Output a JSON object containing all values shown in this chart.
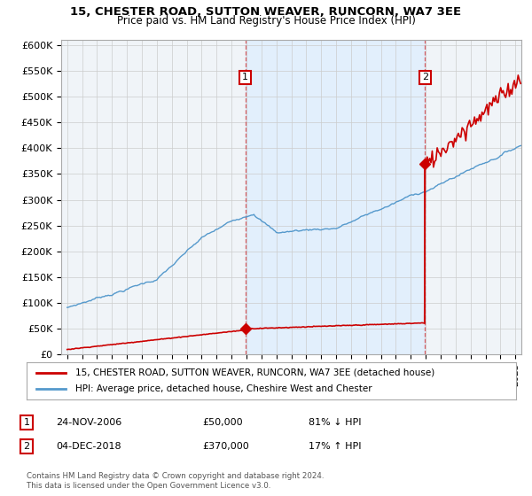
{
  "title": "15, CHESTER ROAD, SUTTON WEAVER, RUNCORN, WA7 3EE",
  "subtitle": "Price paid vs. HM Land Registry's House Price Index (HPI)",
  "ylabel_ticks": [
    "£0",
    "£50K",
    "£100K",
    "£150K",
    "£200K",
    "£250K",
    "£300K",
    "£350K",
    "£400K",
    "£450K",
    "£500K",
    "£550K",
    "£600K"
  ],
  "ytick_values": [
    0,
    50000,
    100000,
    150000,
    200000,
    250000,
    300000,
    350000,
    400000,
    450000,
    500000,
    550000,
    600000
  ],
  "ylim": [
    0,
    610000
  ],
  "xlim_start": 1994.6,
  "xlim_end": 2025.4,
  "sale1_x": 2006.92,
  "sale1_y": 50000,
  "sale2_x": 2018.96,
  "sale2_y": 370000,
  "sale1_label": "1",
  "sale2_label": "2",
  "red_line_color": "#cc0000",
  "blue_line_color": "#5599cc",
  "blue_fill_color": "#ddeeff",
  "legend_label1": "15, CHESTER ROAD, SUTTON WEAVER, RUNCORN, WA7 3EE (detached house)",
  "legend_label2": "HPI: Average price, detached house, Cheshire West and Chester",
  "annot1_date": "24-NOV-2006",
  "annot1_price": "£50,000",
  "annot1_hpi": "81% ↓ HPI",
  "annot2_date": "04-DEC-2018",
  "annot2_price": "£370,000",
  "annot2_hpi": "17% ↑ HPI",
  "footer": "Contains HM Land Registry data © Crown copyright and database right 2024.\nThis data is licensed under the Open Government Licence v3.0.",
  "bg_color": "#ffffff",
  "plot_bg_color": "#f0f4f8"
}
